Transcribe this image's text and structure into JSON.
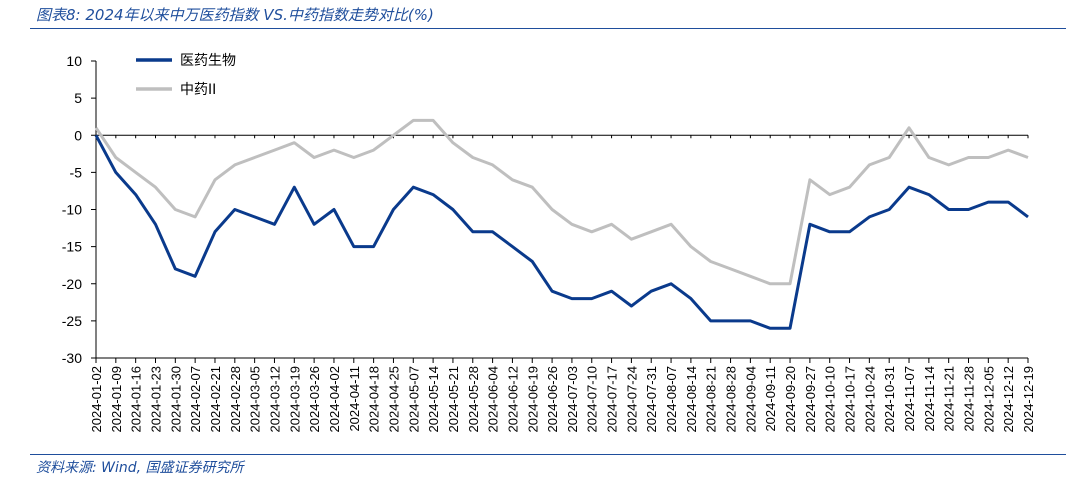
{
  "title": "图表8: 2024年以来中万医药指数 VS.中药指数走势对比(%)",
  "source": "资料来源: Wind, 国盛证券研究所",
  "chart_data": {
    "type": "line",
    "ylim": [
      -30,
      10
    ],
    "yticks": [
      10,
      5,
      0,
      -5,
      -10,
      -15,
      -20,
      -25,
      -30
    ],
    "legend_position": "top-left",
    "x_labels": [
      "2024-01-02",
      "2024-01-09",
      "2024-01-16",
      "2024-01-23",
      "2024-01-30",
      "2024-02-07",
      "2024-02-21",
      "2024-02-28",
      "2024-03-05",
      "2024-03-12",
      "2024-03-19",
      "2024-03-26",
      "2024-04-02",
      "2024-04-11",
      "2024-04-18",
      "2024-04-25",
      "2024-05-07",
      "2024-05-14",
      "2024-05-21",
      "2024-05-28",
      "2024-06-04",
      "2024-06-12",
      "2024-06-19",
      "2024-06-26",
      "2024-07-03",
      "2024-07-10",
      "2024-07-17",
      "2024-07-24",
      "2024-07-31",
      "2024-08-07",
      "2024-08-14",
      "2024-08-21",
      "2024-08-28",
      "2024-09-04",
      "2024-09-11",
      "2024-09-20",
      "2024-09-27",
      "2024-10-10",
      "2024-10-17",
      "2024-10-24",
      "2024-10-31",
      "2024-11-07",
      "2024-11-14",
      "2024-11-21",
      "2024-11-28",
      "2024-12-05",
      "2024-12-12",
      "2024-12-19"
    ],
    "series": [
      {
        "name": "医药生物",
        "color": "#0a3a8c",
        "values": [
          0,
          -5,
          -8,
          -12,
          -18,
          -19,
          -13,
          -10,
          -11,
          -12,
          -7,
          -12,
          -10,
          -15,
          -15,
          -10,
          -7,
          -8,
          -10,
          -13,
          -13,
          -15,
          -17,
          -21,
          -22,
          -22,
          -21,
          -23,
          -21,
          -20,
          -22,
          -25,
          -25,
          -25,
          -26,
          -26,
          -12,
          -13,
          -13,
          -11,
          -10,
          -7,
          -8,
          -10,
          -10,
          -9,
          -9,
          -11
        ]
      },
      {
        "name": "中药II",
        "color": "#bfbfbf",
        "values": [
          1,
          -3,
          -5,
          -7,
          -10,
          -11,
          -6,
          -4,
          -3,
          -2,
          -1,
          -3,
          -2,
          -3,
          -2,
          0,
          2,
          2,
          -1,
          -3,
          -4,
          -6,
          -7,
          -10,
          -12,
          -13,
          -12,
          -14,
          -13,
          -12,
          -15,
          -17,
          -18,
          -19,
          -20,
          -20,
          -6,
          -8,
          -7,
          -4,
          -3,
          1,
          -3,
          -4,
          -3,
          -3,
          -2,
          -3
        ]
      }
    ]
  }
}
